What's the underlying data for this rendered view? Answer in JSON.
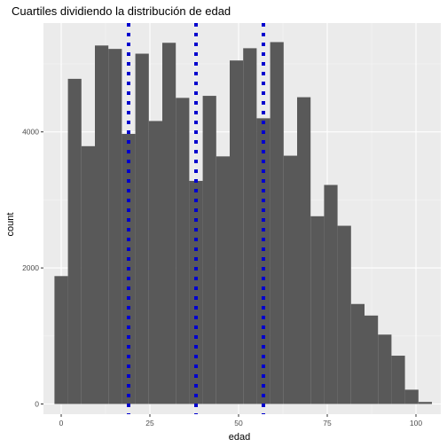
{
  "chart_data": {
    "type": "bar",
    "title": "Cuartiles dividiendo la distribución de edad",
    "xlabel": "edad",
    "ylabel": "count",
    "xlim": [
      -5,
      107
    ],
    "ylim": [
      -150,
      5600
    ],
    "bin_width": 3.8,
    "x_ticks": [
      0,
      25,
      50,
      75,
      100
    ],
    "y_ticks": [
      0,
      2000,
      4000
    ],
    "x_tick_labels": [
      "0",
      "25",
      "50",
      "75",
      "100"
    ],
    "y_tick_labels": [
      "0",
      "2000",
      "4000"
    ],
    "bins": [
      {
        "center": 0.0,
        "count": 1880
      },
      {
        "center": 3.8,
        "count": 4780
      },
      {
        "center": 7.6,
        "count": 3790
      },
      {
        "center": 11.4,
        "count": 5270
      },
      {
        "center": 15.2,
        "count": 5220
      },
      {
        "center": 19.0,
        "count": 3970
      },
      {
        "center": 22.8,
        "count": 5150
      },
      {
        "center": 26.6,
        "count": 4160
      },
      {
        "center": 30.4,
        "count": 5310
      },
      {
        "center": 34.2,
        "count": 4500
      },
      {
        "center": 38.0,
        "count": 3280
      },
      {
        "center": 41.8,
        "count": 4530
      },
      {
        "center": 45.6,
        "count": 3640
      },
      {
        "center": 49.4,
        "count": 5050
      },
      {
        "center": 53.2,
        "count": 5230
      },
      {
        "center": 57.0,
        "count": 4200
      },
      {
        "center": 60.8,
        "count": 5320
      },
      {
        "center": 64.6,
        "count": 3650
      },
      {
        "center": 68.4,
        "count": 4510
      },
      {
        "center": 72.2,
        "count": 2760
      },
      {
        "center": 76.0,
        "count": 3220
      },
      {
        "center": 79.8,
        "count": 2620
      },
      {
        "center": 83.6,
        "count": 1470
      },
      {
        "center": 87.4,
        "count": 1300
      },
      {
        "center": 91.2,
        "count": 1020
      },
      {
        "center": 95.0,
        "count": 710
      },
      {
        "center": 98.8,
        "count": 210
      },
      {
        "center": 102.6,
        "count": 30
      }
    ],
    "quartile_lines": [
      19,
      38,
      57
    ],
    "colors": {
      "panel": "#ebebeb",
      "grid_major": "#ffffff",
      "grid_minor": "#f5f5f5",
      "bar": "#595959",
      "quartile_line": "#0000cd",
      "tick": "#333333"
    }
  }
}
